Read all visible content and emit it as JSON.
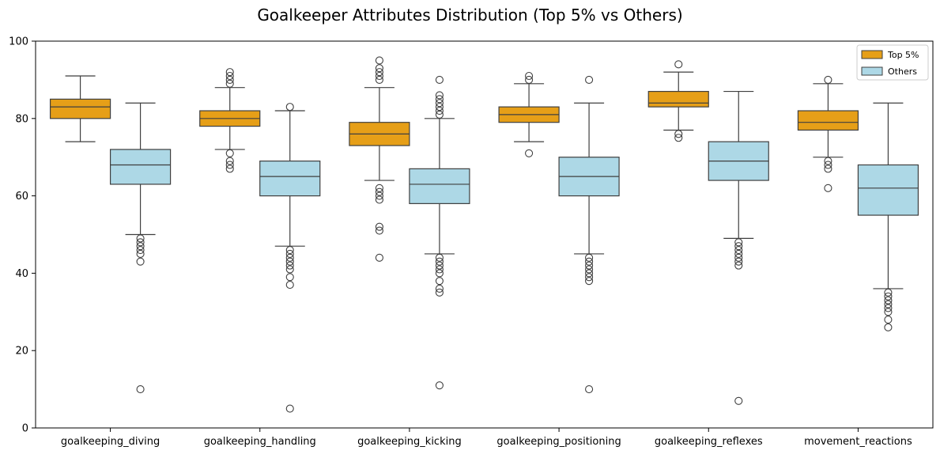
{
  "chart_data": {
    "type": "box",
    "title": "Goalkeeper Attributes Distribution (Top 5% vs Others)",
    "xlabel": "",
    "ylabel": "",
    "ylim": [
      0,
      100
    ],
    "yticks": [
      0,
      20,
      40,
      60,
      80,
      100
    ],
    "grid": false,
    "legend_position": "top-right",
    "categories": [
      "goalkeeping_diving",
      "goalkeeping_handling",
      "goalkeeping_kicking",
      "goalkeeping_positioning",
      "goalkeeping_reflexes",
      "movement_reactions"
    ],
    "series": [
      {
        "name": "Top 5%",
        "color": "#E69F18",
        "boxes": [
          {
            "whisker_low": 74,
            "q1": 80,
            "median": 83,
            "q3": 85,
            "whisker_high": 91,
            "outliers": []
          },
          {
            "whisker_low": 72,
            "q1": 78,
            "median": 80,
            "q3": 82,
            "whisker_high": 88,
            "outliers": [
              67,
              68,
              69,
              71,
              89,
              90,
              91,
              92
            ]
          },
          {
            "whisker_low": 64,
            "q1": 73,
            "median": 76,
            "q3": 79,
            "whisker_high": 88,
            "outliers": [
              44,
              51,
              52,
              59,
              60,
              61,
              62,
              90,
              91,
              92,
              93,
              95
            ]
          },
          {
            "whisker_low": 74,
            "q1": 79,
            "median": 81,
            "q3": 83,
            "whisker_high": 89,
            "outliers": [
              71,
              90,
              91
            ]
          },
          {
            "whisker_low": 77,
            "q1": 83,
            "median": 84,
            "q3": 87,
            "whisker_high": 92,
            "outliers": [
              75,
              76,
              94
            ]
          },
          {
            "whisker_low": 70,
            "q1": 77,
            "median": 79,
            "q3": 82,
            "whisker_high": 89,
            "outliers": [
              62,
              67,
              68,
              69,
              90
            ]
          }
        ]
      },
      {
        "name": "Others",
        "color": "#ADD8E6",
        "boxes": [
          {
            "whisker_low": 50,
            "q1": 63,
            "median": 68,
            "q3": 72,
            "whisker_high": 84,
            "outliers": [
              10,
              43,
              45,
              46,
              47,
              48,
              49
            ]
          },
          {
            "whisker_low": 47,
            "q1": 60,
            "median": 65,
            "q3": 69,
            "whisker_high": 82,
            "outliers": [
              5,
              37,
              39,
              41,
              42,
              43,
              44,
              45,
              46,
              83
            ]
          },
          {
            "whisker_low": 45,
            "q1": 58,
            "median": 63,
            "q3": 67,
            "whisker_high": 80,
            "outliers": [
              11,
              35,
              36,
              38,
              40,
              41,
              42,
              43,
              44,
              81,
              82,
              83,
              84,
              85,
              86,
              90
            ]
          },
          {
            "whisker_low": 45,
            "q1": 60,
            "median": 65,
            "q3": 70,
            "whisker_high": 84,
            "outliers": [
              10,
              38,
              39,
              40,
              41,
              42,
              43,
              44,
              90
            ]
          },
          {
            "whisker_low": 49,
            "q1": 64,
            "median": 69,
            "q3": 74,
            "whisker_high": 87,
            "outliers": [
              7,
              42,
              43,
              44,
              45,
              46,
              47,
              48
            ]
          },
          {
            "whisker_low": 36,
            "q1": 55,
            "median": 62,
            "q3": 68,
            "whisker_high": 84,
            "outliers": [
              26,
              28,
              30,
              31,
              32,
              33,
              34,
              35
            ]
          }
        ]
      }
    ]
  }
}
